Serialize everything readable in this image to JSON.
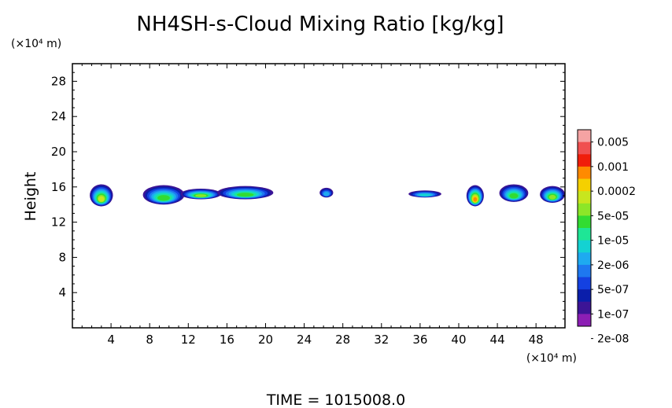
{
  "chart_data": {
    "type": "heatmap",
    "title": "NH4SH-s-Cloud Mixing Ratio [kg/kg]",
    "ylabel": "Height",
    "xunit": "(×10⁴ m)",
    "yunit": "(×10⁴ m)",
    "xlim": [
      0,
      51
    ],
    "ylim": [
      0,
      30
    ],
    "xticks": [
      4,
      8,
      12,
      16,
      20,
      24,
      28,
      32,
      36,
      40,
      44,
      48
    ],
    "yticks": [
      4,
      8,
      12,
      16,
      20,
      24,
      28
    ],
    "grid": false,
    "colorbar": {
      "labels": [
        "0.005",
        "0.001",
        "0.0002",
        "5e-05",
        "1e-05",
        "2e-06",
        "5e-07",
        "1e-07",
        "2e-08"
      ],
      "colors": [
        "#f5a3a3",
        "#f05050",
        "#f01e0a",
        "#ff8a00",
        "#f5d000",
        "#c8e61e",
        "#8ce628",
        "#32dc32",
        "#1ee696",
        "#14d2d2",
        "#1eaaf0",
        "#1e78f0",
        "#1441e1",
        "#0a1eaa",
        "#3c1496",
        "#8c1eb4"
      ]
    },
    "clouds": [
      {
        "x0": 1.8,
        "x1": 4.2,
        "y0": 13.8,
        "y1": 16.3,
        "peak": 5
      },
      {
        "x0": 7.3,
        "x1": 11.6,
        "y0": 14.0,
        "y1": 16.2,
        "peak": 7
      },
      {
        "x0": 11.2,
        "x1": 15.4,
        "y0": 14.6,
        "y1": 15.8,
        "peak": 6
      },
      {
        "x0": 15.0,
        "x1": 20.8,
        "y0": 14.6,
        "y1": 16.1,
        "peak": 7
      },
      {
        "x0": 25.6,
        "x1": 27.0,
        "y0": 14.8,
        "y1": 15.9,
        "peak": 10
      },
      {
        "x0": 34.8,
        "x1": 38.2,
        "y0": 14.8,
        "y1": 15.6,
        "peak": 9
      },
      {
        "x0": 40.8,
        "x1": 42.6,
        "y0": 13.8,
        "y1": 16.2,
        "peak": 3
      },
      {
        "x0": 44.2,
        "x1": 47.2,
        "y0": 14.3,
        "y1": 16.3,
        "peak": 7
      },
      {
        "x0": 48.4,
        "x1": 51.0,
        "y0": 14.2,
        "y1": 16.1,
        "peak": 6
      }
    ]
  },
  "footer": {
    "time_text": "TIME  =  1015008.0"
  }
}
